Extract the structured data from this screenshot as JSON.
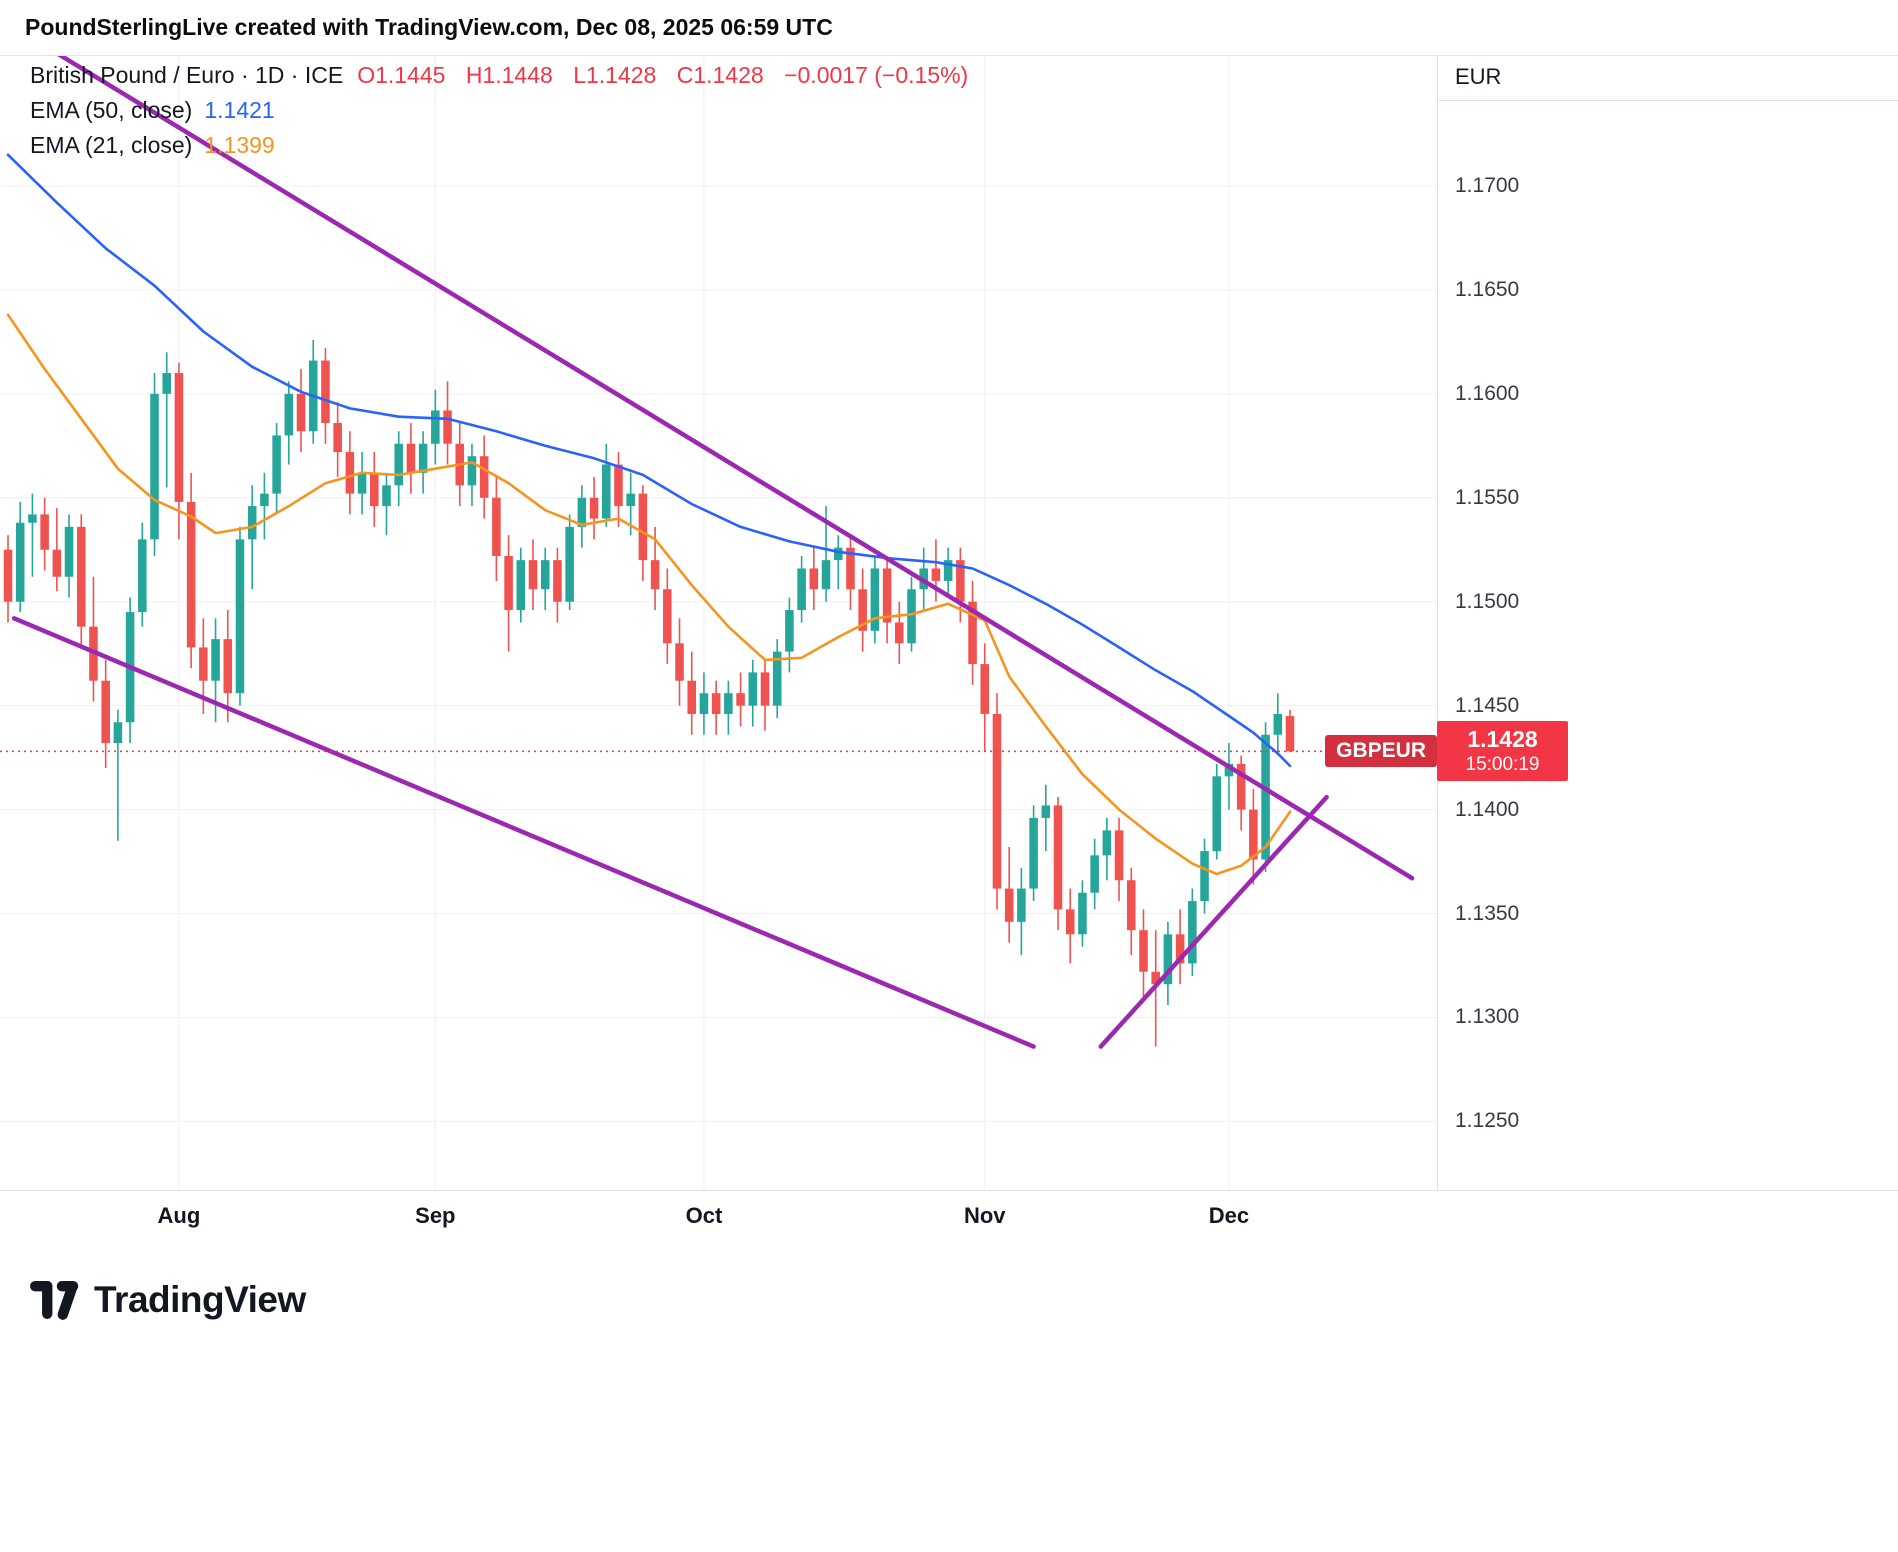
{
  "header": {
    "title": "PoundSterlingLive created with TradingView.com, Dec 08, 2025 06:59 UTC"
  },
  "legend": {
    "symbol": "British Pound / Euro · 1D · ICE",
    "ohlc": {
      "open": "O1.1445",
      "high": "H1.1448",
      "low": "L1.1428",
      "close": "C1.1428",
      "change": "−0.0017 (−0.15%)"
    },
    "ema50": {
      "label": "EMA (50, close)",
      "value": "1.1421"
    },
    "ema21": {
      "label": "EMA (21, close)",
      "value": "1.1399"
    }
  },
  "price_axis": {
    "currency": "EUR",
    "ticks": [
      "1.1700",
      "1.1650",
      "1.1600",
      "1.1550",
      "1.1500",
      "1.1450",
      "1.1400",
      "1.1350",
      "1.1300",
      "1.1250"
    ]
  },
  "time_axis": {
    "months": [
      {
        "label": "Aug",
        "index": 14
      },
      {
        "label": "Sep",
        "index": 35
      },
      {
        "label": "Oct",
        "index": 57
      },
      {
        "label": "Nov",
        "index": 80
      },
      {
        "label": "Dec",
        "index": 100
      }
    ]
  },
  "price_label": {
    "symbol": "GBPEUR",
    "price": "1.1428",
    "countdown": "15:00:19"
  },
  "footer": {
    "brand": "TradingView"
  },
  "colors": {
    "up": "#26a69a",
    "down": "#ef5350",
    "ema50": "#2962ff",
    "ema21": "#f7941d",
    "trendline": "#9c27b0",
    "last_price_line": "#f23645",
    "badge_bg": "#f23645",
    "badge_symbol_bg": "#d2303f",
    "grid": "#edf0f6"
  },
  "chart_data": {
    "type": "candlestick",
    "title": "British Pound / Euro, 1D, ICE",
    "ylabel": "EUR",
    "ylim": [
      1.1217,
      1.1763
    ],
    "grid": true,
    "last_price": 1.1428,
    "candles": [
      [
        1.1525,
        1.1532,
        1.149,
        1.15
      ],
      [
        1.15,
        1.1548,
        1.1495,
        1.1538
      ],
      [
        1.1538,
        1.1552,
        1.1512,
        1.1542
      ],
      [
        1.1542,
        1.155,
        1.1515,
        1.1525
      ],
      [
        1.1525,
        1.1545,
        1.1505,
        1.1512
      ],
      [
        1.1512,
        1.1542,
        1.1502,
        1.1536
      ],
      [
        1.1536,
        1.1542,
        1.1478,
        1.1488
      ],
      [
        1.1488,
        1.1512,
        1.1452,
        1.1462
      ],
      [
        1.1462,
        1.1472,
        1.142,
        1.1432
      ],
      [
        1.1432,
        1.1448,
        1.1385,
        1.1442
      ],
      [
        1.1442,
        1.1502,
        1.1432,
        1.1495
      ],
      [
        1.1495,
        1.1538,
        1.1488,
        1.153
      ],
      [
        1.153,
        1.161,
        1.1522,
        1.16
      ],
      [
        1.16,
        1.162,
        1.1555,
        1.161
      ],
      [
        1.161,
        1.1615,
        1.153,
        1.1548
      ],
      [
        1.1548,
        1.1562,
        1.1468,
        1.1478
      ],
      [
        1.1478,
        1.1492,
        1.1446,
        1.1462
      ],
      [
        1.1462,
        1.1492,
        1.1442,
        1.1482
      ],
      [
        1.1482,
        1.1496,
        1.1442,
        1.1456
      ],
      [
        1.1456,
        1.1536,
        1.145,
        1.153
      ],
      [
        1.153,
        1.1556,
        1.1506,
        1.1546
      ],
      [
        1.1546,
        1.1562,
        1.153,
        1.1552
      ],
      [
        1.1552,
        1.1586,
        1.1542,
        1.158
      ],
      [
        1.158,
        1.1606,
        1.1566,
        1.16
      ],
      [
        1.16,
        1.1612,
        1.1572,
        1.1582
      ],
      [
        1.1582,
        1.1626,
        1.1576,
        1.1616
      ],
      [
        1.1616,
        1.1622,
        1.1576,
        1.1586
      ],
      [
        1.1586,
        1.1596,
        1.156,
        1.1572
      ],
      [
        1.1572,
        1.1582,
        1.1542,
        1.1552
      ],
      [
        1.1552,
        1.1572,
        1.1542,
        1.1562
      ],
      [
        1.1562,
        1.1572,
        1.1536,
        1.1546
      ],
      [
        1.1546,
        1.1562,
        1.1532,
        1.1556
      ],
      [
        1.1556,
        1.1582,
        1.1546,
        1.1576
      ],
      [
        1.1576,
        1.1586,
        1.1552,
        1.1562
      ],
      [
        1.1562,
        1.1582,
        1.1552,
        1.1576
      ],
      [
        1.1576,
        1.1602,
        1.1566,
        1.1592
      ],
      [
        1.1592,
        1.1606,
        1.1566,
        1.1576
      ],
      [
        1.1576,
        1.1586,
        1.1546,
        1.1556
      ],
      [
        1.1556,
        1.1576,
        1.1546,
        1.157
      ],
      [
        1.157,
        1.158,
        1.154,
        1.155
      ],
      [
        1.155,
        1.156,
        1.151,
        1.1522
      ],
      [
        1.1522,
        1.1532,
        1.1476,
        1.1496
      ],
      [
        1.1496,
        1.1526,
        1.149,
        1.152
      ],
      [
        1.152,
        1.153,
        1.1496,
        1.1506
      ],
      [
        1.1506,
        1.1526,
        1.1496,
        1.152
      ],
      [
        1.152,
        1.1526,
        1.149,
        1.15
      ],
      [
        1.15,
        1.1542,
        1.1496,
        1.1536
      ],
      [
        1.1536,
        1.1556,
        1.1526,
        1.155
      ],
      [
        1.155,
        1.156,
        1.153,
        1.154
      ],
      [
        1.154,
        1.1576,
        1.1536,
        1.1566
      ],
      [
        1.1566,
        1.1572,
        1.1536,
        1.1546
      ],
      [
        1.1546,
        1.1562,
        1.1532,
        1.1552
      ],
      [
        1.1552,
        1.1556,
        1.151,
        1.152
      ],
      [
        1.152,
        1.1536,
        1.1496,
        1.1506
      ],
      [
        1.1506,
        1.1516,
        1.147,
        1.148
      ],
      [
        1.148,
        1.1492,
        1.145,
        1.1462
      ],
      [
        1.1462,
        1.1476,
        1.1436,
        1.1446
      ],
      [
        1.1446,
        1.1466,
        1.1436,
        1.1456
      ],
      [
        1.1456,
        1.1462,
        1.1436,
        1.1446
      ],
      [
        1.1446,
        1.1462,
        1.1436,
        1.1456
      ],
      [
        1.1456,
        1.1466,
        1.144,
        1.145
      ],
      [
        1.145,
        1.1472,
        1.144,
        1.1466
      ],
      [
        1.1466,
        1.1472,
        1.1438,
        1.145
      ],
      [
        1.145,
        1.1482,
        1.1444,
        1.1476
      ],
      [
        1.1476,
        1.1502,
        1.1466,
        1.1496
      ],
      [
        1.1496,
        1.1522,
        1.149,
        1.1516
      ],
      [
        1.1516,
        1.1526,
        1.1496,
        1.1506
      ],
      [
        1.1506,
        1.1546,
        1.15,
        1.152
      ],
      [
        1.152,
        1.1532,
        1.1506,
        1.1526
      ],
      [
        1.1526,
        1.1532,
        1.1496,
        1.1506
      ],
      [
        1.1506,
        1.1516,
        1.1476,
        1.1486
      ],
      [
        1.1486,
        1.1522,
        1.148,
        1.1516
      ],
      [
        1.1516,
        1.1522,
        1.148,
        1.149
      ],
      [
        1.149,
        1.15,
        1.147,
        1.148
      ],
      [
        1.148,
        1.1512,
        1.1476,
        1.1506
      ],
      [
        1.1506,
        1.1526,
        1.1496,
        1.1516
      ],
      [
        1.1516,
        1.153,
        1.15,
        1.151
      ],
      [
        1.151,
        1.1526,
        1.1502,
        1.152
      ],
      [
        1.152,
        1.1526,
        1.149,
        1.15
      ],
      [
        1.15,
        1.151,
        1.146,
        1.147
      ],
      [
        1.147,
        1.148,
        1.1428,
        1.1446
      ],
      [
        1.1446,
        1.1456,
        1.1352,
        1.1362
      ],
      [
        1.1362,
        1.1382,
        1.1336,
        1.1346
      ],
      [
        1.1346,
        1.1372,
        1.133,
        1.1362
      ],
      [
        1.1362,
        1.1402,
        1.1356,
        1.1396
      ],
      [
        1.1396,
        1.1412,
        1.138,
        1.1402
      ],
      [
        1.1402,
        1.1406,
        1.1342,
        1.1352
      ],
      [
        1.1352,
        1.1362,
        1.1326,
        1.134
      ],
      [
        1.134,
        1.1366,
        1.1334,
        1.136
      ],
      [
        1.136,
        1.1386,
        1.1352,
        1.1378
      ],
      [
        1.1378,
        1.1396,
        1.1366,
        1.139
      ],
      [
        1.139,
        1.1396,
        1.1356,
        1.1366
      ],
      [
        1.1366,
        1.1372,
        1.133,
        1.1342
      ],
      [
        1.1342,
        1.1352,
        1.131,
        1.1322
      ],
      [
        1.1322,
        1.1342,
        1.1286,
        1.1316
      ],
      [
        1.1316,
        1.1346,
        1.1306,
        1.134
      ],
      [
        1.134,
        1.1352,
        1.1316,
        1.1326
      ],
      [
        1.1326,
        1.1362,
        1.132,
        1.1356
      ],
      [
        1.1356,
        1.1386,
        1.135,
        1.138
      ],
      [
        1.138,
        1.1422,
        1.1376,
        1.1416
      ],
      [
        1.1416,
        1.1432,
        1.14,
        1.1422
      ],
      [
        1.1422,
        1.1426,
        1.139,
        1.14
      ],
      [
        1.14,
        1.141,
        1.1364,
        1.1376
      ],
      [
        1.1376,
        1.1442,
        1.137,
        1.1436
      ],
      [
        1.1436,
        1.1456,
        1.1426,
        1.1446
      ],
      [
        1.1445,
        1.1448,
        1.1428,
        1.1428
      ]
    ],
    "ema50_points": [
      [
        0,
        1.1715
      ],
      [
        4,
        1.1692
      ],
      [
        8,
        1.167
      ],
      [
        12,
        1.1652
      ],
      [
        16,
        1.163
      ],
      [
        20,
        1.1613
      ],
      [
        24,
        1.1601
      ],
      [
        28,
        1.1593
      ],
      [
        32,
        1.1589
      ],
      [
        36,
        1.1588
      ],
      [
        40,
        1.1582
      ],
      [
        44,
        1.1575
      ],
      [
        48,
        1.1569
      ],
      [
        52,
        1.1561
      ],
      [
        56,
        1.1547
      ],
      [
        60,
        1.1536
      ],
      [
        64,
        1.1529
      ],
      [
        68,
        1.1524
      ],
      [
        72,
        1.1521
      ],
      [
        76,
        1.1519
      ],
      [
        79,
        1.1516
      ],
      [
        82,
        1.1508
      ],
      [
        85,
        1.1499
      ],
      [
        88,
        1.1489
      ],
      [
        91,
        1.1478
      ],
      [
        94,
        1.1467
      ],
      [
        97,
        1.1457
      ],
      [
        100,
        1.1445
      ],
      [
        102,
        1.1437
      ],
      [
        104,
        1.1427
      ],
      [
        105,
        1.1421
      ]
    ],
    "ema21_points": [
      [
        0,
        1.1638
      ],
      [
        3,
        1.1612
      ],
      [
        6,
        1.1588
      ],
      [
        9,
        1.1564
      ],
      [
        12,
        1.1549
      ],
      [
        15,
        1.1541
      ],
      [
        17,
        1.1533
      ],
      [
        20,
        1.1536
      ],
      [
        23,
        1.1546
      ],
      [
        26,
        1.1557
      ],
      [
        29,
        1.1562
      ],
      [
        32,
        1.1561
      ],
      [
        35,
        1.1564
      ],
      [
        38,
        1.1567
      ],
      [
        41,
        1.1557
      ],
      [
        44,
        1.1544
      ],
      [
        47,
        1.1537
      ],
      [
        50,
        1.154
      ],
      [
        53,
        1.153
      ],
      [
        56,
        1.1508
      ],
      [
        59,
        1.1488
      ],
      [
        62,
        1.1472
      ],
      [
        65,
        1.1473
      ],
      [
        68,
        1.1483
      ],
      [
        71,
        1.1492
      ],
      [
        74,
        1.1494
      ],
      [
        77,
        1.1499
      ],
      [
        80,
        1.1491
      ],
      [
        82,
        1.1464
      ],
      [
        85,
        1.144
      ],
      [
        88,
        1.1417
      ],
      [
        91,
        1.14
      ],
      [
        94,
        1.1386
      ],
      [
        97,
        1.1374
      ],
      [
        99,
        1.1369
      ],
      [
        101,
        1.1373
      ],
      [
        103,
        1.1382
      ],
      [
        105,
        1.1399
      ]
    ],
    "trendlines": [
      {
        "name": "upper-resistance-line",
        "i1": 2,
        "p1": 1.1771,
        "i2": 115,
        "p2": 1.1367
      },
      {
        "name": "lower-channel-line",
        "i1": 0.5,
        "p1": 1.1492,
        "i2": 84,
        "p2": 1.1286
      },
      {
        "name": "rising-support-line",
        "i1": 89.5,
        "p1": 1.1286,
        "i2": 108,
        "p2": 1.1406
      }
    ]
  }
}
